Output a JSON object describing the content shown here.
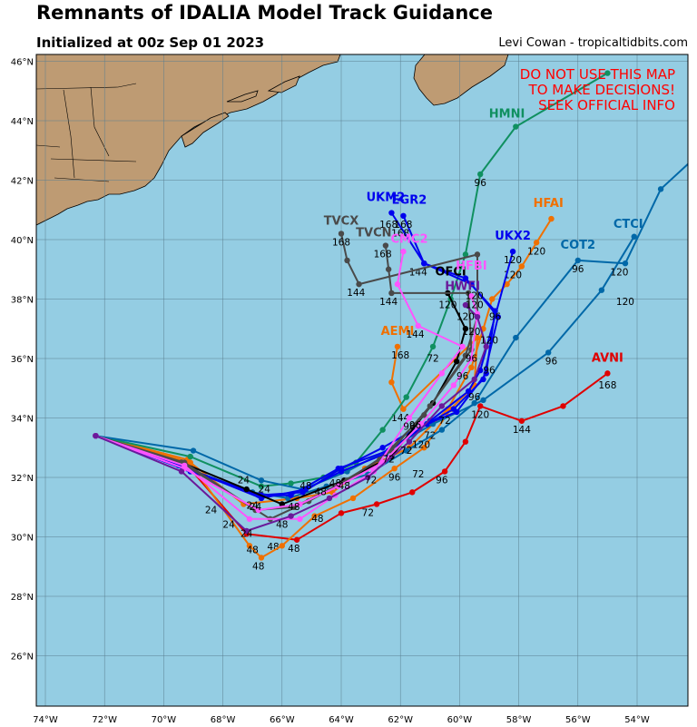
{
  "header": {
    "title": "Remnants of IDALIA Model Track Guidance",
    "subtitle": "Initialized at 00z Sep 01 2023",
    "credit": "Levi Cowan - tropicaltidbits.com"
  },
  "warning": [
    "DO NOT USE THIS MAP",
    "TO MAKE DECISIONS!",
    "SEEK OFFICIAL INFO"
  ],
  "colors": {
    "ocean": "#94cde3",
    "land": "#be9b73",
    "grid": "#5a7f90"
  },
  "axes": {
    "lon_ticks": [
      "74°W",
      "72°W",
      "70°W",
      "68°W",
      "66°W",
      "64°W",
      "62°W",
      "60°W",
      "58°W",
      "56°W",
      "54°W"
    ],
    "lat_ticks": [
      "26°N",
      "28°N",
      "30°N",
      "32°N",
      "34°N",
      "36°N",
      "38°N",
      "40°N",
      "42°N",
      "44°N",
      "46°N"
    ]
  },
  "tracks": [
    {
      "name": "AVNI",
      "color": "#e00000",
      "points": [
        [
          -72.3,
          33.4
        ],
        [
          -69.2,
          32.4
        ],
        [
          -67.2,
          30.1
        ],
        [
          -65.5,
          29.9
        ],
        [
          -64,
          30.8
        ],
        [
          -62.8,
          31.1
        ],
        [
          -61.6,
          31.5
        ],
        [
          -60.5,
          32.2
        ],
        [
          -59.8,
          33.2
        ],
        [
          -59.3,
          34.4
        ],
        [
          -57.9,
          33.9
        ],
        [
          -56.5,
          34.4
        ],
        [
          -55,
          35.5
        ]
      ],
      "hour_labels": [
        [
          "48",
          -66.3,
          29.55
        ],
        [
          "48",
          -65.6,
          29.5
        ],
        [
          "72",
          -63.1,
          30.7
        ],
        [
          "96",
          -60.6,
          31.8
        ],
        [
          "144",
          -57.9,
          33.5
        ],
        [
          "168",
          -55,
          35.0
        ],
        [
          "120",
          -59.3,
          34.0
        ]
      ]
    },
    {
      "name": "AEMI",
      "color": "#f07000",
      "points": [
        [
          -72.3,
          33.4
        ],
        [
          -69.2,
          32.6
        ],
        [
          -67.1,
          29.7
        ],
        [
          -66.7,
          29.3
        ],
        [
          -66,
          29.7
        ],
        [
          -64.9,
          30.7
        ],
        [
          -63.6,
          31.3
        ],
        [
          -62.2,
          32.3
        ],
        [
          -61.2,
          33.0
        ],
        [
          -60.3,
          34.3
        ],
        [
          -59.5,
          35.1
        ],
        [
          -59.4,
          36.7
        ],
        [
          -61.9,
          34.3
        ],
        [
          -62.3,
          35.2
        ],
        [
          -62.1,
          36.4
        ]
      ],
      "hour_labels": [
        [
          "48",
          -66.8,
          28.9
        ],
        [
          "96",
          -62.2,
          31.9
        ],
        [
          "144",
          -62.0,
          33.9
        ],
        [
          "168",
          -62.0,
          36.0
        ]
      ]
    },
    {
      "name": "HFAI",
      "color": "#f07000",
      "points": [
        [
          -72.3,
          33.4
        ],
        [
          -69.1,
          32.5
        ],
        [
          -67.3,
          31.1
        ],
        [
          -65.5,
          31.3
        ],
        [
          -64.3,
          31.5
        ],
        [
          -63.2,
          32.3
        ],
        [
          -61.7,
          33.0
        ],
        [
          -60.4,
          34.3
        ],
        [
          -59.6,
          35.7
        ],
        [
          -59.2,
          37.0
        ],
        [
          -58.9,
          38.0
        ],
        [
          -58.4,
          38.5
        ],
        [
          -57.9,
          39.1
        ],
        [
          -57.4,
          39.9
        ],
        [
          -56.9,
          40.7
        ]
      ],
      "hour_labels": [
        [
          "120",
          -58.2,
          38.7
        ],
        [
          "120",
          -57.4,
          39.5
        ]
      ]
    },
    {
      "name": "HMNI",
      "color": "#109060",
      "points": [
        [
          -72.3,
          33.4
        ],
        [
          -69.1,
          32.7
        ],
        [
          -66.7,
          31.7
        ],
        [
          -65.7,
          31.8
        ],
        [
          -64.6,
          32.0
        ],
        [
          -63.5,
          32.5
        ],
        [
          -62.6,
          33.6
        ],
        [
          -61.8,
          34.7
        ],
        [
          -60.9,
          36.4
        ],
        [
          -60.3,
          38.0
        ],
        [
          -59.8,
          39.5
        ],
        [
          -59.3,
          42.2
        ],
        [
          -58.1,
          43.8
        ],
        [
          -55,
          45.6
        ]
      ],
      "hour_labels": [
        [
          "72",
          -60.9,
          35.9
        ],
        [
          "96",
          -59.3,
          41.8
        ]
      ]
    },
    {
      "name": "CTCI",
      "color": "#0068a8",
      "points": [
        [
          -72.3,
          33.4
        ],
        [
          -69,
          32.9
        ],
        [
          -66.7,
          31.9
        ],
        [
          -65.3,
          31.6
        ],
        [
          -63.8,
          32.2
        ],
        [
          -62.3,
          33.0
        ],
        [
          -60.9,
          33.8
        ],
        [
          -59.2,
          34.6
        ],
        [
          -57,
          36.2
        ],
        [
          -55.2,
          38.3
        ],
        [
          -54.1,
          40.1
        ]
      ],
      "hour_labels": [
        [
          "72",
          -61.0,
          33.3
        ],
        [
          "96",
          -56.9,
          35.8
        ],
        [
          "120",
          -54.4,
          37.8
        ]
      ]
    },
    {
      "name": "COT2",
      "color": "#0068a8",
      "points": [
        [
          -72.3,
          33.4
        ],
        [
          -69.5,
          32.4
        ],
        [
          -67,
          31.5
        ],
        [
          -65.8,
          31.3
        ],
        [
          -64.5,
          31.7
        ],
        [
          -63.1,
          32.1
        ],
        [
          -61.8,
          32.9
        ],
        [
          -60.6,
          33.6
        ],
        [
          -59.5,
          34.5
        ],
        [
          -58.1,
          36.7
        ],
        [
          -56,
          39.3
        ],
        [
          -54.4,
          39.2
        ],
        [
          -53.2,
          41.7
        ],
        [
          -52,
          42.8
        ]
      ],
      "hour_labels": [
        [
          "96",
          -56,
          38.9
        ],
        [
          "120",
          -54.6,
          38.8
        ]
      ]
    },
    {
      "name": "UKM2",
      "color": "#0000ee",
      "points": [
        [
          -72.3,
          33.4
        ],
        [
          -69.1,
          32.2
        ],
        [
          -66.7,
          31.4
        ],
        [
          -65.7,
          31.4
        ],
        [
          -64.1,
          32.3
        ],
        [
          -62.4,
          32.9
        ],
        [
          -61.1,
          33.8
        ],
        [
          -60.2,
          34.3
        ],
        [
          -59.2,
          35.3
        ],
        [
          -58.7,
          37.4
        ],
        [
          -59.6,
          38.5
        ],
        [
          -61.2,
          39.2
        ],
        [
          -62.3,
          40.9
        ]
      ],
      "hour_labels": [
        [
          "168",
          -62.4,
          40.4
        ],
        [
          "144",
          -61.4,
          38.8
        ]
      ]
    },
    {
      "name": "EGR2",
      "color": "#0000ee",
      "points": [
        [
          -72.3,
          33.4
        ],
        [
          -69.2,
          32.3
        ],
        [
          -66.7,
          31.3
        ],
        [
          -65.2,
          31.6
        ],
        [
          -64,
          32.2
        ],
        [
          -62.5,
          32.8
        ],
        [
          -61.1,
          33.8
        ],
        [
          -60.1,
          34.2
        ],
        [
          -59.1,
          35.5
        ],
        [
          -58.8,
          37.6
        ],
        [
          -59.8,
          38.7
        ],
        [
          -61.2,
          39.2
        ],
        [
          -61.9,
          40.8
        ]
      ],
      "hour_labels": [
        [
          "168",
          -61.9,
          40.4
        ]
      ]
    },
    {
      "name": "UKX2",
      "color": "#0000ee",
      "points": [
        [
          -72.3,
          33.4
        ],
        [
          -69.2,
          32.3
        ],
        [
          -66.8,
          31.4
        ],
        [
          -65.3,
          31.5
        ],
        [
          -64,
          32.3
        ],
        [
          -62.6,
          33.0
        ],
        [
          -61,
          33.9
        ],
        [
          -59.7,
          34.9
        ],
        [
          -59.3,
          35.6
        ],
        [
          -58.2,
          39.6
        ]
      ],
      "hour_labels": [
        [
          "120",
          -58.2,
          39.2
        ]
      ]
    },
    {
      "name": "OFCI",
      "color": "#000000",
      "points": [
        [
          -72.3,
          33.4
        ],
        [
          -69.4,
          32.5
        ],
        [
          -67.2,
          31.6
        ],
        [
          -66,
          31.1
        ],
        [
          -63.9,
          31.9
        ],
        [
          -62.3,
          32.7
        ],
        [
          -60.9,
          34.5
        ],
        [
          -60.1,
          35.9
        ],
        [
          -59.8,
          37.0
        ],
        [
          -60.4,
          38.2
        ]
      ],
      "hour_labels": [
        [
          "120",
          -60.4,
          37.7
        ]
      ]
    },
    {
      "name": "TVCX",
      "color": "#4a4a4a",
      "points": [
        [
          -72.3,
          33.4
        ],
        [
          -69.4,
          32.5
        ],
        [
          -66.4,
          30.6
        ],
        [
          -65.1,
          31.2
        ],
        [
          -63.8,
          31.9
        ],
        [
          -62.3,
          32.9
        ],
        [
          -61,
          34.4
        ],
        [
          -59.6,
          36.3
        ],
        [
          -59.7,
          38.2
        ],
        [
          -62.3,
          38.2
        ],
        [
          -62.4,
          39.0
        ],
        [
          -62.5,
          39.8
        ]
      ],
      "hour_labels": [
        [
          "144",
          -62.4,
          37.8
        ],
        [
          "168",
          -62.6,
          39.4
        ]
      ]
    },
    {
      "name": "TVCN",
      "color": "#4a4a4a",
      "points": [
        [
          -72.3,
          33.4
        ],
        [
          -69.3,
          32.5
        ],
        [
          -66.9,
          30.9
        ],
        [
          -65.6,
          31.0
        ],
        [
          -64.2,
          31.7
        ],
        [
          -62.7,
          32.6
        ],
        [
          -61.2,
          34.1
        ],
        [
          -59.8,
          36.1
        ],
        [
          -59.4,
          37.4
        ],
        [
          -59.4,
          39.5
        ],
        [
          -63.4,
          38.5
        ],
        [
          -63.8,
          39.3
        ],
        [
          -64,
          40.2
        ]
      ],
      "hour_labels": [
        [
          "144",
          -63.5,
          38.1
        ],
        [
          "168",
          -64.0,
          39.8
        ]
      ]
    },
    {
      "name": "CMC2",
      "color": "#ff55ff",
      "points": [
        [
          -72.3,
          33.4
        ],
        [
          -69.3,
          32.4
        ],
        [
          -67.1,
          30.6
        ],
        [
          -65.4,
          30.6
        ],
        [
          -64.2,
          31.4
        ],
        [
          -62.9,
          32.2
        ],
        [
          -61.7,
          34.0
        ],
        [
          -60.6,
          35.5
        ],
        [
          -59.9,
          36.4
        ],
        [
          -61.4,
          37.1
        ],
        [
          -62.1,
          38.5
        ],
        [
          -61.9,
          39.6
        ]
      ],
      "hour_labels": [
        [
          "144",
          -61.5,
          36.7
        ],
        [
          "96",
          -61.7,
          33.6
        ],
        [
          "168",
          -62.0,
          40.1
        ]
      ]
    },
    {
      "name": "HFBI",
      "color": "#ff55ff",
      "points": [
        [
          -72.3,
          33.4
        ],
        [
          -69.3,
          32.3
        ],
        [
          -66.8,
          30.9
        ],
        [
          -65.4,
          31.1
        ],
        [
          -64.1,
          31.7
        ],
        [
          -62.6,
          32.5
        ],
        [
          -61.3,
          33.8
        ],
        [
          -60.2,
          35.1
        ],
        [
          -59.6,
          36.0
        ],
        [
          -59.4,
          37.5
        ],
        [
          -59.6,
          38.1
        ]
      ],
      "hour_labels": [
        [
          "120",
          -59.5,
          38.0
        ]
      ]
    },
    {
      "name": "HWFI",
      "color": "#6a1a9a",
      "points": [
        [
          -72.3,
          33.4
        ],
        [
          -69.4,
          32.2
        ],
        [
          -67.2,
          30.2
        ],
        [
          -65.7,
          30.7
        ],
        [
          -64.4,
          31.3
        ],
        [
          -63.1,
          32.0
        ],
        [
          -61.7,
          33.2
        ],
        [
          -60.6,
          34.4
        ],
        [
          -59.5,
          35.3
        ],
        [
          -59.1,
          36.4
        ],
        [
          -59.4,
          37.4
        ],
        [
          -59.8,
          37.8
        ]
      ],
      "hour_labels": [
        [
          "120",
          -59.8,
          37.3
        ]
      ]
    }
  ],
  "other_hour_labels": [
    "24",
    "48",
    "72",
    "96",
    "120"
  ]
}
